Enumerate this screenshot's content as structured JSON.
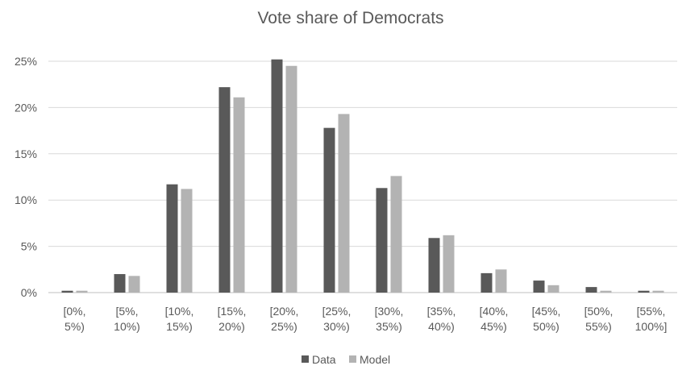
{
  "chart_data": {
    "type": "bar",
    "title": "Vote share of Democrats",
    "xlabel": "",
    "ylabel": "",
    "categories": [
      [
        "[0%,",
        "5%)"
      ],
      [
        "[5%,",
        "10%)"
      ],
      [
        "[10%,",
        "15%)"
      ],
      [
        "[15%,",
        "20%)"
      ],
      [
        "[20%,",
        "25%)"
      ],
      [
        "[25%,",
        "30%)"
      ],
      [
        "[30%,",
        "35%)"
      ],
      [
        "[35%,",
        "40%)"
      ],
      [
        "[40%,",
        "45%)"
      ],
      [
        "[45%,",
        "50%)"
      ],
      [
        "[50%,",
        "55%)"
      ],
      [
        "[55%,",
        "100%]"
      ]
    ],
    "series": [
      {
        "name": "Data",
        "color": "#595959",
        "values": [
          0.2,
          2.0,
          11.7,
          22.2,
          25.2,
          17.8,
          11.3,
          5.9,
          2.1,
          1.3,
          0.6,
          0.2
        ]
      },
      {
        "name": "Model",
        "color": "#b3b3b3",
        "values": [
          0.2,
          1.8,
          11.2,
          21.1,
          24.5,
          19.3,
          12.6,
          6.2,
          2.5,
          0.8,
          0.2,
          0.2
        ]
      }
    ],
    "ylim": [
      0,
      25
    ],
    "yticks": [
      0,
      5,
      10,
      15,
      20,
      25
    ],
    "ytick_suffix": "%",
    "grid": true,
    "legend_position": "bottom"
  }
}
